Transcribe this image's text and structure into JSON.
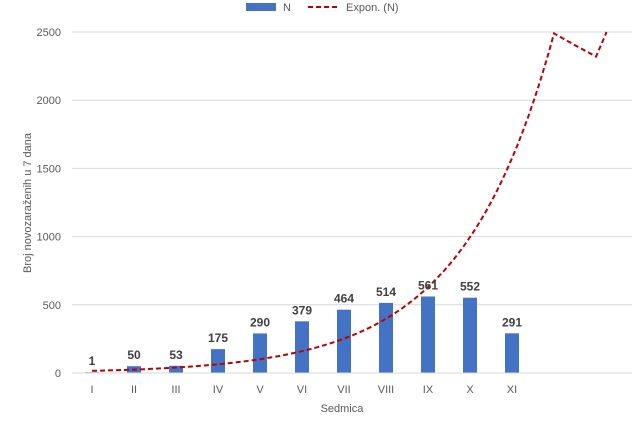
{
  "chart_data": {
    "type": "bar",
    "categories": [
      "I",
      "II",
      "III",
      "IV",
      "V",
      "VI",
      "VII",
      "VIII",
      "IX",
      "X",
      "XI"
    ],
    "series": [
      {
        "name": "N",
        "type": "bar",
        "values": [
          1,
          50,
          53,
          175,
          290,
          379,
          464,
          514,
          561,
          552,
          291
        ],
        "color": "#4472c4",
        "data_labels": [
          "1",
          "50",
          "53",
          "175",
          "290",
          "379",
          "464",
          "514",
          "561",
          "552",
          "291"
        ]
      },
      {
        "name": "Expon. (N)",
        "type": "trendline-exponential",
        "x": [
          1,
          2,
          3,
          4,
          5,
          6,
          7,
          8,
          9,
          10,
          11,
          12,
          13,
          13.25
        ],
        "values": [
          16,
          25,
          40,
          64,
          101,
          160,
          252,
          398,
          630,
          996,
          1575,
          2490,
          2320,
          2500
        ],
        "color": "#c00000",
        "dash": "dashed"
      }
    ],
    "xlabel": "Sedmica",
    "ylabel": "Broj novozaraženih u 7 dana",
    "ylim": [
      0,
      2500
    ],
    "yticks": [
      "0",
      "500",
      "1000",
      "1500",
      "2000",
      "2500"
    ],
    "grid": true,
    "legend_position": "top"
  }
}
